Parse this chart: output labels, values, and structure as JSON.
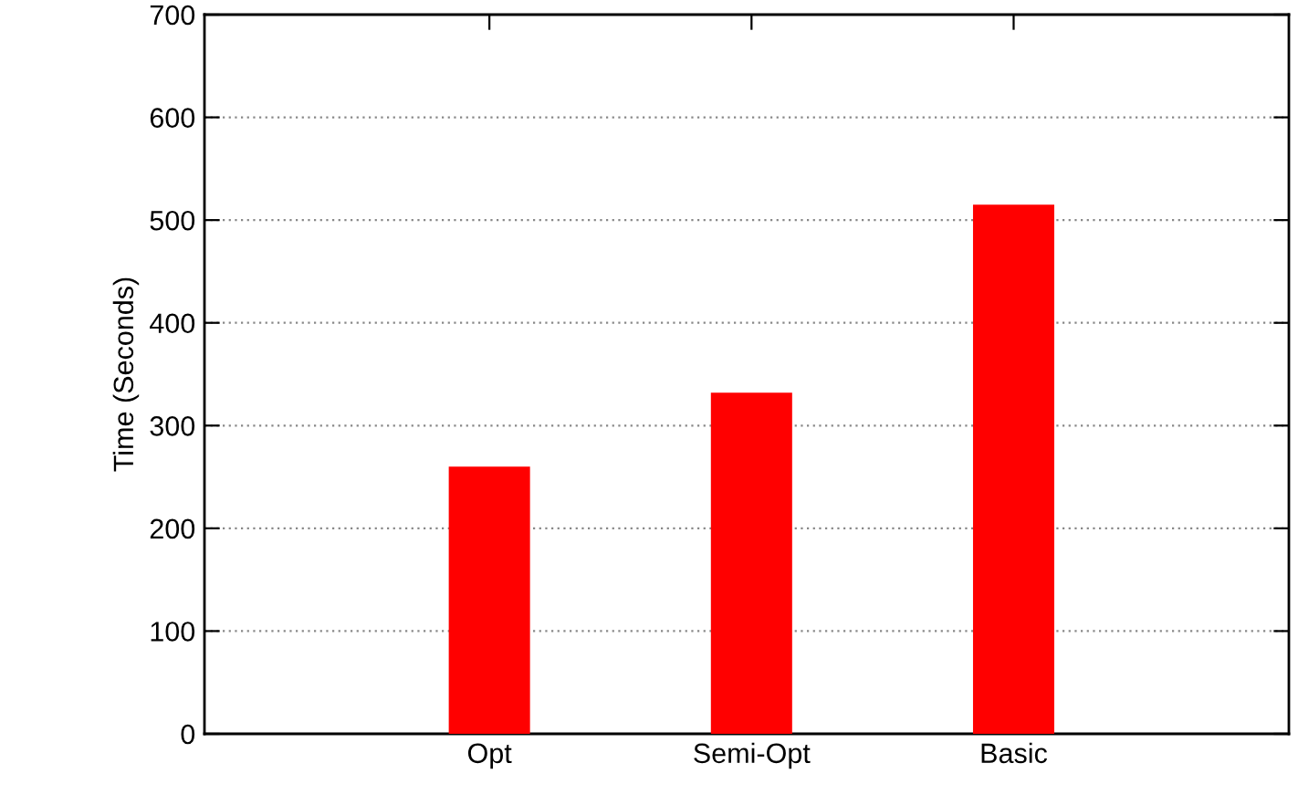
{
  "chart_data": {
    "type": "bar",
    "ylabel": "Time (Seconds)",
    "categories": [
      "Opt",
      "Semi-Opt",
      "Basic"
    ],
    "values": [
      260,
      332,
      515
    ],
    "color": "#ff0000",
    "ylim": [
      0,
      700
    ],
    "yticks": [
      0,
      100,
      200,
      300,
      400,
      500,
      600,
      700
    ],
    "grid": "y"
  }
}
